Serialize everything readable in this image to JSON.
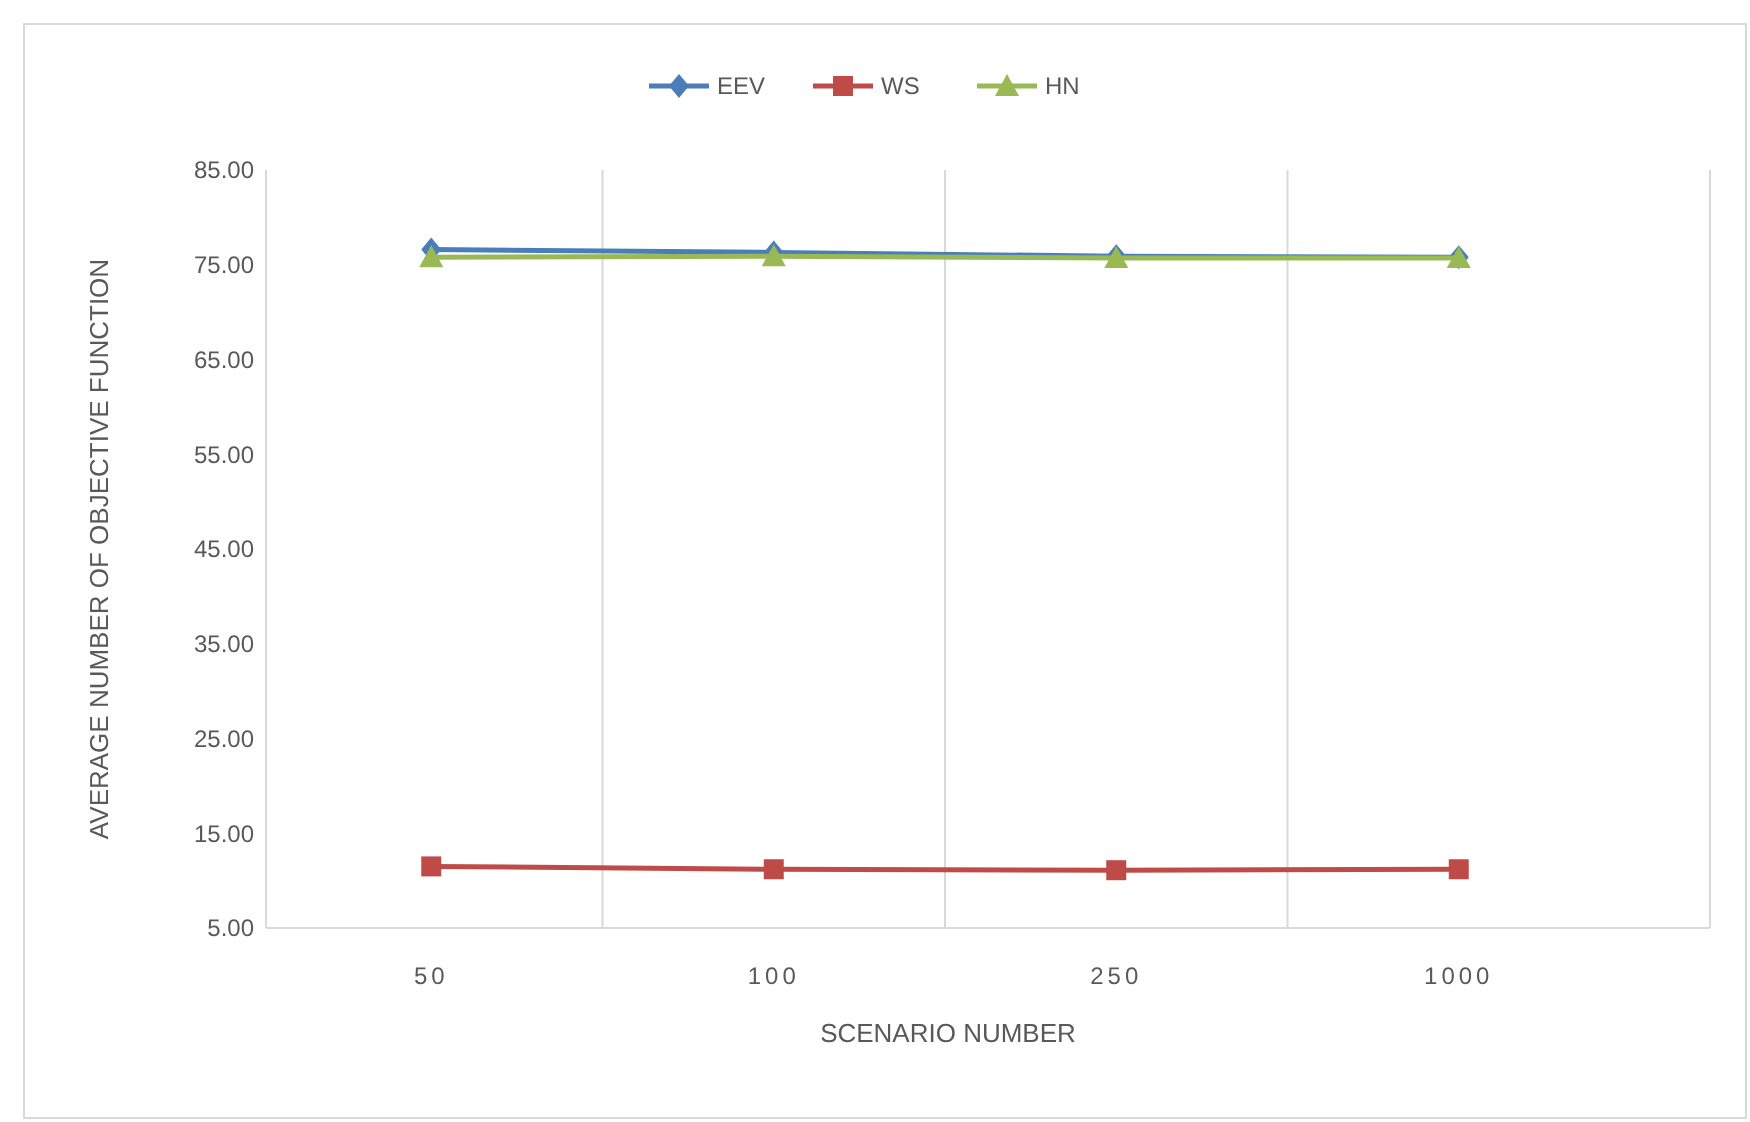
{
  "chart_data": {
    "type": "line",
    "xlabel": "SCENARIO NUMBER",
    "ylabel": "AVERAGE NUMBER OF OBJECTIVE FUNCTION",
    "categories": [
      "50",
      "100",
      "250",
      "1000"
    ],
    "ylim": [
      5,
      85
    ],
    "yticks": [
      {
        "value": 5,
        "label": "5.00"
      },
      {
        "value": 15,
        "label": "15.00"
      },
      {
        "value": 25,
        "label": "25.00"
      },
      {
        "value": 35,
        "label": "35.00"
      },
      {
        "value": 45,
        "label": "45.00"
      },
      {
        "value": 55,
        "label": "55.00"
      },
      {
        "value": 65,
        "label": "65.00"
      },
      {
        "value": 75,
        "label": "75.00"
      },
      {
        "value": 85,
        "label": "85.00"
      }
    ],
    "grid": "x",
    "legend": "top",
    "series": [
      {
        "name": "EEV",
        "color": "#4a7ebb",
        "marker": "diamond",
        "values": [
          76.6,
          76.3,
          75.9,
          75.8
        ]
      },
      {
        "name": "WS",
        "color": "#be4b48",
        "marker": "square",
        "values": [
          11.5,
          11.2,
          11.1,
          11.2
        ]
      },
      {
        "name": "HN",
        "color": "#98b954",
        "marker": "triangle",
        "values": [
          75.8,
          75.9,
          75.7,
          75.7
        ]
      }
    ]
  }
}
